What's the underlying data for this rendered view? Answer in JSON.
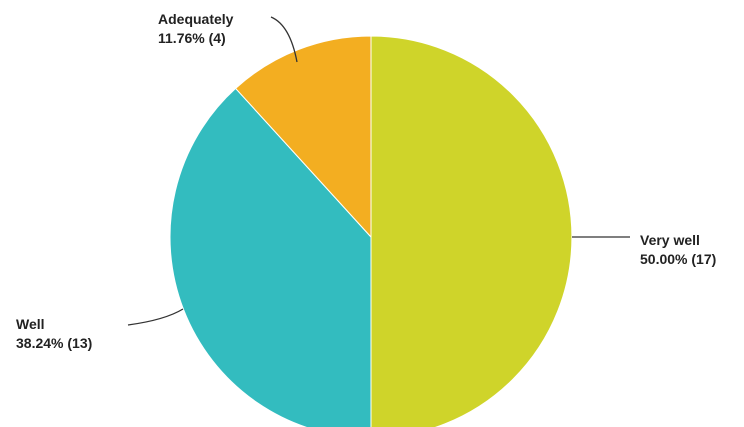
{
  "chart_data": {
    "type": "pie",
    "start_angle_deg": 0,
    "direction": "clockwise",
    "slices": [
      {
        "category": "Very well",
        "percent_label": "50.00% (17)",
        "percent": 50.0,
        "count": 17,
        "color": "#cfd42a"
      },
      {
        "category": "Well",
        "percent_label": "38.24% (13)",
        "percent": 38.24,
        "count": 13,
        "color": "#33bcbf"
      },
      {
        "category": "Adequately",
        "percent_label": "11.76% (4)",
        "percent": 11.76,
        "count": 4,
        "color": "#f3ae21"
      }
    ],
    "legend": "none"
  }
}
